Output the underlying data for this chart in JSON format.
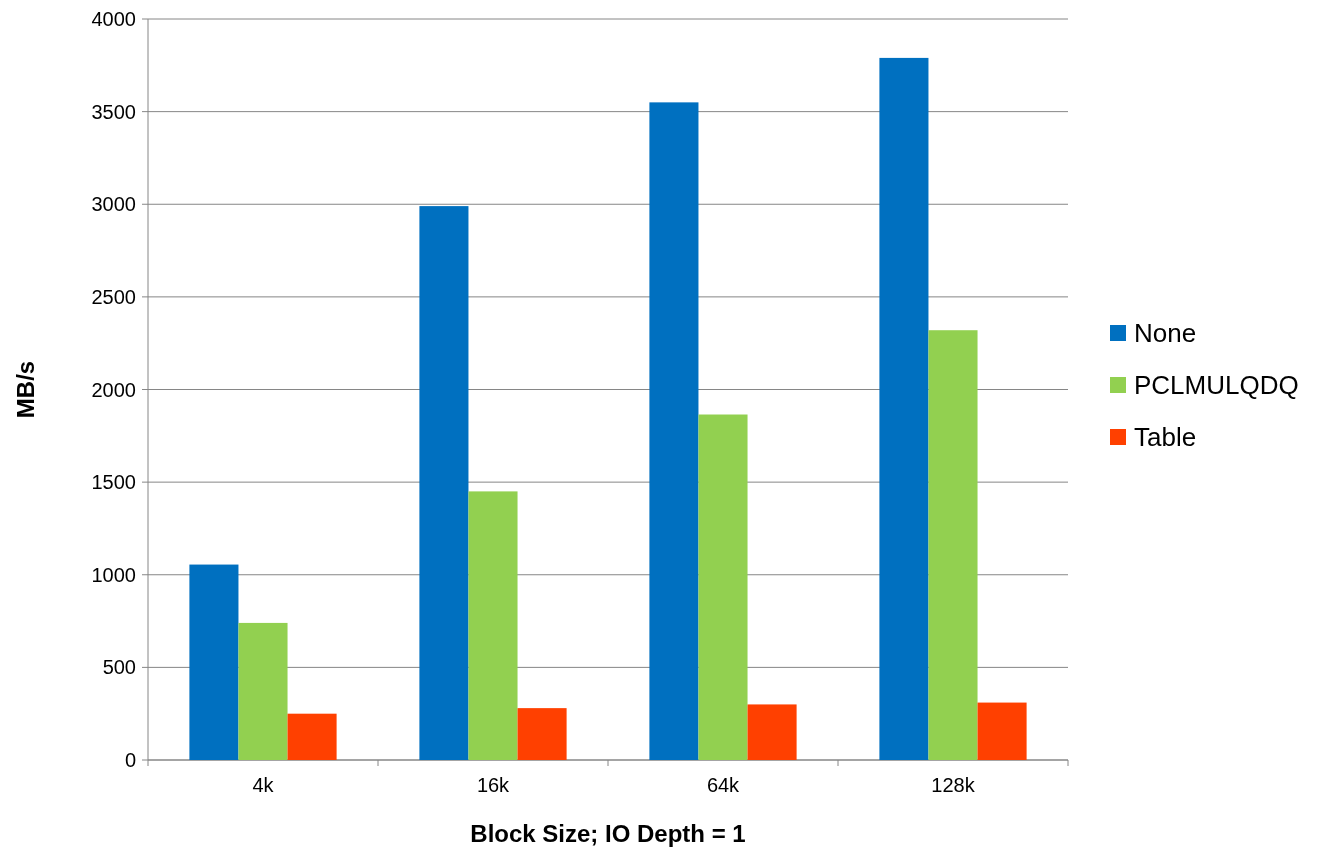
{
  "chart_data": {
    "type": "bar",
    "xlabel": "Block Size; IO Depth = 1",
    "ylabel": "MB/s",
    "categories": [
      "4k",
      "16k",
      "64k",
      "128k"
    ],
    "series": [
      {
        "name": "None",
        "color": "#0070c0",
        "values": [
          1055,
          2990,
          3550,
          3790
        ]
      },
      {
        "name": "PCLMULQDQ",
        "color": "#92d050",
        "values": [
          740,
          1450,
          1865,
          2320
        ]
      },
      {
        "name": "Table",
        "color": "#ff4000",
        "values": [
          250,
          280,
          300,
          310
        ]
      }
    ],
    "ylim": [
      0,
      4000
    ],
    "yticks": [
      0,
      500,
      1000,
      1500,
      2000,
      2500,
      3000,
      3500,
      4000
    ],
    "grid": "y",
    "legend": "right"
  }
}
